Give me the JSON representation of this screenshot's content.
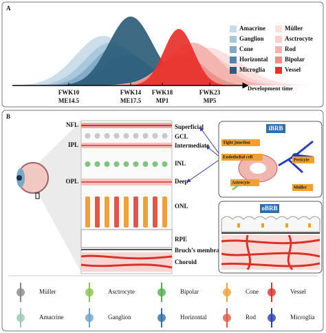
{
  "panel_a": {
    "label": "A",
    "legend": [
      "Amacrine",
      "Ganglion",
      "Cone",
      "Horizontal",
      "Microglia",
      "Müller",
      "Asctrocyte",
      "Rod",
      "Bipolar",
      "Vessel"
    ],
    "ticks": [
      {
        "top": "FWK10",
        "bottom": "ME14.5"
      },
      {
        "top": "FWK14",
        "bottom": "ME17.5"
      },
      {
        "top": "FWK18",
        "bottom": "MP1"
      },
      {
        "top": "FWK23",
        "bottom": "MP5"
      }
    ],
    "axis_label": "Development time"
  },
  "panel_b": {
    "label": "B",
    "left_layers": [
      "NFL",
      "IPL",
      "OPL"
    ],
    "right_layers": [
      "Superficial",
      "GCL",
      "Intermediate",
      "INL",
      "Deep",
      "ONL",
      "RPE",
      "Bruch’s membrane",
      "Choroid"
    ],
    "ibrb": {
      "title": "iBRB",
      "labels": [
        "Tight junction",
        "Endothelial cell",
        "Pericyte",
        "Astrocyte",
        "Müller"
      ]
    },
    "obrb": {
      "title": "oBRB"
    },
    "legend": [
      "Müller",
      "Asctrocyte",
      "Bipolar",
      "Cone",
      "Vessel",
      "Amacrine",
      "Ganglion",
      "Horizontal",
      "Rod",
      "Microglia"
    ]
  }
}
